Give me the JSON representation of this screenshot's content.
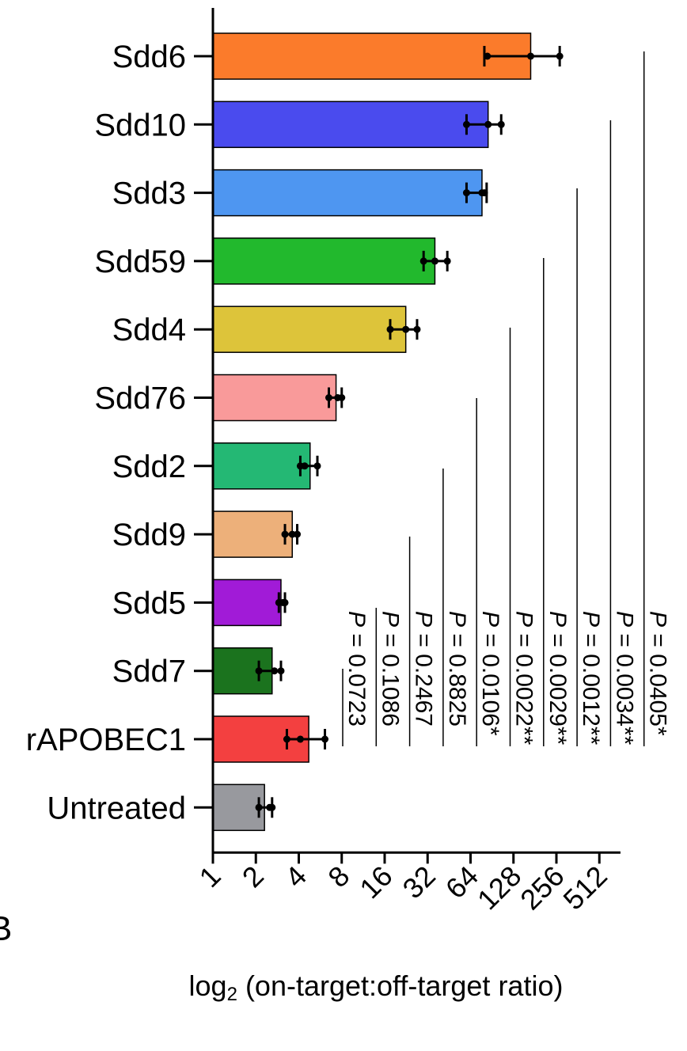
{
  "chart_data": {
    "type": "bar",
    "orientation": "horizontal",
    "xlabel_main": "log",
    "xlabel_sub": "2",
    "xlabel_rest": " (on-target:off-target ratio)",
    "x_scale": "log2",
    "xlim": [
      1,
      720
    ],
    "x_ticks": [
      "1",
      "2",
      "4",
      "8",
      "16",
      "32",
      "64",
      "128",
      "256",
      "512"
    ],
    "x_tick_values": [
      1,
      2,
      4,
      8,
      16,
      32,
      64,
      128,
      256,
      512
    ],
    "categories": [
      "Sdd6",
      "Sdd10",
      "Sdd3",
      "Sdd59",
      "Sdd4",
      "Sdd76",
      "Sdd2",
      "Sdd9",
      "Sdd5",
      "Sdd7",
      "rAPOBEC1",
      "Untreated"
    ],
    "values": [
      169,
      85,
      77,
      36,
      22.5,
      7.3,
      4.8,
      3.6,
      3.0,
      2.6,
      4.7,
      2.3
    ],
    "error_low": [
      80,
      60,
      60,
      30,
      17.5,
      6.5,
      4.1,
      3.2,
      2.9,
      2.1,
      3.3,
      2.1
    ],
    "error_high": [
      270,
      105,
      83,
      44,
      27,
      8.0,
      5.4,
      3.9,
      3.2,
      3.0,
      6.1,
      2.6
    ],
    "points": [
      [
        84,
        169,
        270
      ],
      [
        60,
        85,
        105
      ],
      [
        60,
        77,
        80
      ],
      [
        30,
        36,
        44
      ],
      [
        17.5,
        22.5,
        27
      ],
      [
        6.5,
        7.5,
        8.0
      ],
      [
        4.1,
        4.4,
        5.4
      ],
      [
        3.2,
        3.6,
        3.9
      ],
      [
        2.9,
        3.1,
        3.2
      ],
      [
        2.1,
        2.7,
        3.0
      ],
      [
        3.3,
        4.1,
        6.1
      ],
      [
        2.1,
        2.5,
        2.6
      ]
    ],
    "colors": [
      "#FB7B2B",
      "#4A4BEE",
      "#4E96F1",
      "#22B92D",
      "#DDC43A",
      "#F99A9A",
      "#24B874",
      "#EDB07A",
      "#A11BD7",
      "#1B731E",
      "#F34040",
      "#98999E"
    ],
    "comparisons": [
      {
        "label": "P",
        "text": " = 0.0723",
        "stars": ""
      },
      {
        "label": "P",
        "text": " = 0.1086",
        "stars": ""
      },
      {
        "label": "P",
        "text": " = 0.2467",
        "stars": ""
      },
      {
        "label": "P",
        "text": " = 0.8825",
        "stars": ""
      },
      {
        "label": "P",
        "text": " = 0.0106",
        "stars": "*"
      },
      {
        "label": "P",
        "text": " = 0.0022",
        "stars": "**"
      },
      {
        "label": "P",
        "text": " = 0.0029",
        "stars": "**"
      },
      {
        "label": "P",
        "text": " = 0.0012",
        "stars": "**"
      },
      {
        "label": "P",
        "text": " = 0.0034",
        "stars": "**"
      },
      {
        "label": "P",
        "text": " = 0.0405",
        "stars": "*"
      }
    ],
    "corner_mark": "B",
    "grid": false,
    "legend": "none"
  }
}
